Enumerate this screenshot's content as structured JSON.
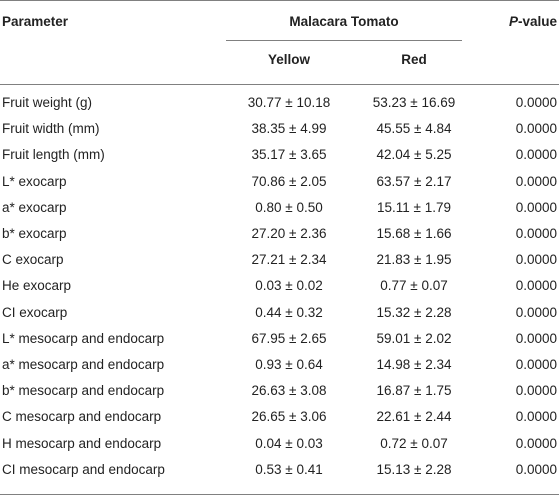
{
  "header": {
    "parameter": "Parameter",
    "group": "Malacara Tomato",
    "pvalue_italic": "P",
    "pvalue_rest": "-value",
    "yellow": "Yellow",
    "red": "Red"
  },
  "rows": [
    {
      "param": "Fruit weight (g)",
      "yellow": "30.77 ± 10.18",
      "red": "53.23 ± 16.69",
      "p": "0.0000"
    },
    {
      "param": "Fruit width (mm)",
      "yellow": "38.35 ± 4.99",
      "red": "45.55 ± 4.84",
      "p": "0.0000"
    },
    {
      "param": "Fruit length (mm)",
      "yellow": "35.17 ± 3.65",
      "red": "42.04 ± 5.25",
      "p": "0.0000"
    },
    {
      "param": "L* exocarp",
      "yellow": "70.86 ± 2.05",
      "red": "63.57 ± 2.17",
      "p": "0.0000"
    },
    {
      "param": "a* exocarp",
      "yellow": "0.80 ± 0.50",
      "red": "15.11 ± 1.79",
      "p": "0.0000"
    },
    {
      "param": "b* exocarp",
      "yellow": "27.20 ± 2.36",
      "red": "15.68 ± 1.66",
      "p": "0.0000"
    },
    {
      "param": "C exocarp",
      "yellow": "27.21 ± 2.34",
      "red": "21.83 ± 1.95",
      "p": "0.0000"
    },
    {
      "param": "He exocarp",
      "yellow": "0.03 ± 0.02",
      "red": "0.77 ± 0.07",
      "p": "0.0000"
    },
    {
      "param": "CI exocarp",
      "yellow": "0.44 ± 0.32",
      "red": "15.32 ± 2.28",
      "p": "0.0000"
    },
    {
      "param": "L* mesocarp and endocarp",
      "yellow": "67.95 ± 2.65",
      "red": "59.01 ± 2.02",
      "p": "0.0000"
    },
    {
      "param": "a* mesocarp and endocarp",
      "yellow": "0.93 ± 0.64",
      "red": "14.98 ± 2.34",
      "p": "0.0000"
    },
    {
      "param": "b* mesocarp and endocarp",
      "yellow": "26.63 ± 3.08",
      "red": "16.87 ± 1.75",
      "p": "0.0000"
    },
    {
      "param": "C mesocarp and endocarp",
      "yellow": "26.65 ± 3.06",
      "red": "22.61 ± 2.44",
      "p": "0.0000"
    },
    {
      "param": "H mesocarp and endocarp",
      "yellow": "0.04 ± 0.03",
      "red": "0.72 ± 0.07",
      "p": "0.0000"
    },
    {
      "param": "CI mesocarp and endocarp",
      "yellow": "0.53 ± 0.41",
      "red": "15.13 ± 2.28",
      "p": "0.0000"
    }
  ]
}
